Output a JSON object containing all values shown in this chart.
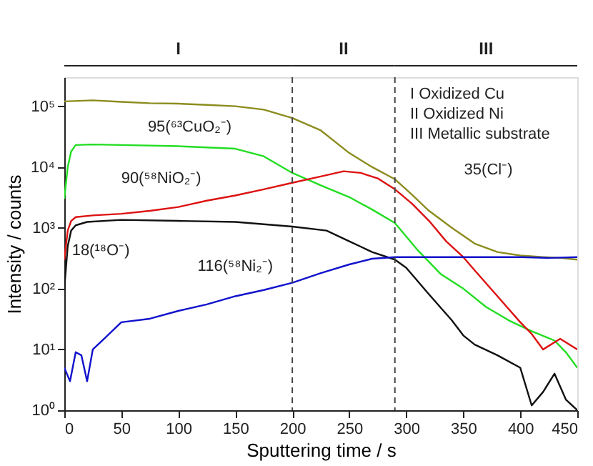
{
  "chart_data": {
    "type": "line",
    "xlabel": "Sputtering time / s",
    "ylabel": "Intensity / counts",
    "log": "y",
    "grid": false,
    "line_style": "solid",
    "marker": "none",
    "xlim": [
      0,
      450
    ],
    "xticks": [
      0,
      50,
      100,
      150,
      200,
      250,
      300,
      350,
      400,
      450
    ],
    "ylim": [
      1,
      300000
    ],
    "yticks": [
      {
        "value": 1,
        "label": "10⁰"
      },
      {
        "value": 10,
        "label": "10¹"
      },
      {
        "value": 100,
        "label": "10²"
      },
      {
        "value": 1000,
        "label": "10³"
      },
      {
        "value": 10000,
        "label": "10⁴"
      },
      {
        "value": 100000,
        "label": "10⁵"
      }
    ],
    "ref_lines": [
      {
        "axis": "x",
        "value": 200,
        "color": "#444444",
        "line_style": "dashed"
      },
      {
        "axis": "x",
        "value": 290,
        "color": "#444444",
        "line_style": "dashed"
      }
    ],
    "annotations": [
      "I",
      "II",
      "III",
      "I Oxidized Cu",
      "II Oxidized Ni",
      "III Metallic substrate"
    ],
    "series": [
      {
        "name": "35(Cl⁻)",
        "color": "#8c8c1e",
        "x": [
          0,
          25,
          50,
          75,
          100,
          125,
          150,
          175,
          200,
          225,
          250,
          270,
          290,
          305,
          320,
          340,
          360,
          380,
          400,
          420,
          435,
          450
        ],
        "values": [
          120000,
          125000,
          118000,
          112000,
          110000,
          105000,
          100000,
          88000,
          64000,
          40000,
          17000,
          10000,
          6300,
          3500,
          1900,
          1000,
          550,
          400,
          350,
          330,
          320,
          300
        ]
      },
      {
        "name": "95(⁶³CuO₂⁻)",
        "color": "#22dd22",
        "x": [
          0,
          3,
          6,
          10,
          25,
          50,
          100,
          150,
          175,
          200,
          225,
          250,
          270,
          290,
          310,
          330,
          350,
          370,
          390,
          410,
          430,
          440,
          450
        ],
        "values": [
          3000,
          10000,
          18000,
          23000,
          23500,
          23000,
          22000,
          20000,
          15000,
          8000,
          5000,
          3200,
          2000,
          1200,
          430,
          175,
          100,
          50,
          30,
          20,
          14,
          9,
          5
        ]
      },
      {
        "name": "90(⁵⁸NiO₂⁻)",
        "color": "#dd1111",
        "x": [
          0,
          3,
          6,
          10,
          25,
          50,
          75,
          100,
          125,
          150,
          175,
          200,
          225,
          245,
          260,
          275,
          290,
          305,
          320,
          335,
          350,
          360,
          380,
          400,
          410,
          420,
          435,
          450
        ],
        "values": [
          300,
          900,
          1300,
          1500,
          1600,
          1700,
          1900,
          2200,
          2800,
          3400,
          4300,
          5500,
          7000,
          8500,
          8000,
          6500,
          4300,
          2500,
          1300,
          600,
          330,
          200,
          75,
          28,
          18,
          10,
          15,
          10
        ]
      },
      {
        "name": "18(¹⁸O⁻)",
        "color": "#111111",
        "x": [
          0,
          3,
          6,
          10,
          20,
          50,
          100,
          150,
          200,
          230,
          250,
          270,
          290,
          300,
          320,
          340,
          350,
          360,
          380,
          400,
          410,
          420,
          430,
          440,
          450
        ],
        "values": [
          100,
          500,
          900,
          1100,
          1250,
          1350,
          1300,
          1250,
          1050,
          900,
          600,
          400,
          300,
          220,
          80,
          30,
          17,
          12,
          8,
          5,
          1.2,
          2,
          4,
          1.5,
          1
        ]
      },
      {
        "name": "116(⁵⁸Ni₂⁻)",
        "color": "#1111cc",
        "x": [
          0,
          5,
          10,
          15,
          20,
          25,
          35,
          50,
          75,
          100,
          125,
          150,
          175,
          200,
          225,
          250,
          270,
          290,
          320,
          350,
          380,
          400,
          425,
          450
        ],
        "values": [
          5,
          3,
          9,
          8,
          3,
          10,
          15,
          28,
          32,
          43,
          55,
          75,
          95,
          125,
          180,
          250,
          310,
          330,
          330,
          330,
          330,
          330,
          320,
          330
        ]
      }
    ]
  }
}
